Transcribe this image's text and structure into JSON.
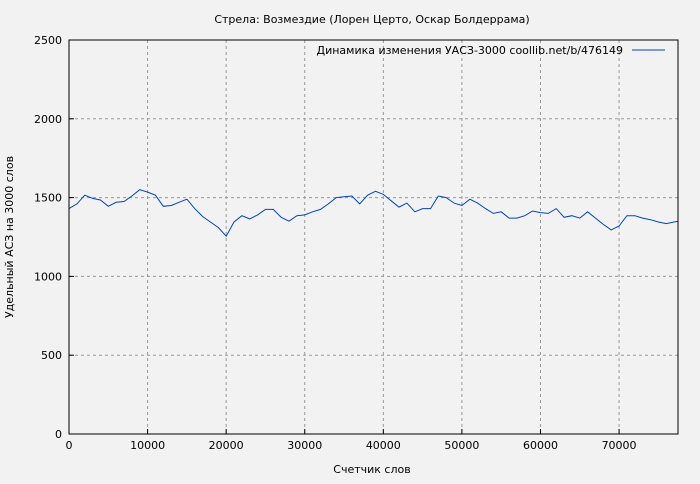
{
  "chart_data": {
    "type": "line",
    "title": "Стрела: Возмездие (Лорен Церто, Оскар Болдеррама)",
    "xlabel": "Счетчик слов",
    "ylabel": "Удельный АСЗ на 3000 слов",
    "xlim": [
      0,
      77500
    ],
    "ylim": [
      0,
      2500
    ],
    "xticks": [
      0,
      10000,
      20000,
      30000,
      40000,
      50000,
      60000,
      70000
    ],
    "yticks": [
      0,
      500,
      1000,
      1500,
      2000,
      2500
    ],
    "grid": true,
    "legend_position": "top-right",
    "line_color": "#0044bb",
    "series": [
      {
        "name": "Динамика изменения УАСЗ-3000  coollib.net/b/476149",
        "x": [
          0,
          1000,
          2000,
          3000,
          4000,
          5000,
          6000,
          7000,
          8000,
          9000,
          10000,
          11000,
          12000,
          13000,
          14000,
          15000,
          16000,
          17000,
          18000,
          19000,
          20000,
          21000,
          22000,
          23000,
          24000,
          25000,
          26000,
          27000,
          28000,
          29000,
          30000,
          31000,
          32000,
          33000,
          34000,
          35000,
          36000,
          37000,
          38000,
          39000,
          40000,
          41000,
          42000,
          43000,
          44000,
          45000,
          46000,
          47000,
          48000,
          49000,
          50000,
          51000,
          52000,
          53000,
          54000,
          55000,
          56000,
          57000,
          58000,
          59000,
          60000,
          61000,
          62000,
          63000,
          64000,
          65000,
          66000,
          67000,
          68000,
          69000,
          70000,
          71000,
          72000,
          73000,
          74000,
          75000,
          76000,
          77000,
          77500
        ],
        "y": [
          1430,
          1460,
          1515,
          1495,
          1485,
          1445,
          1470,
          1475,
          1510,
          1550,
          1535,
          1515,
          1445,
          1450,
          1470,
          1490,
          1430,
          1380,
          1345,
          1310,
          1255,
          1345,
          1385,
          1365,
          1390,
          1425,
          1425,
          1375,
          1350,
          1385,
          1390,
          1410,
          1425,
          1460,
          1500,
          1505,
          1510,
          1460,
          1515,
          1540,
          1520,
          1480,
          1440,
          1465,
          1410,
          1430,
          1430,
          1510,
          1500,
          1465,
          1450,
          1490,
          1465,
          1430,
          1400,
          1410,
          1370,
          1370,
          1385,
          1415,
          1405,
          1400,
          1430,
          1375,
          1385,
          1370,
          1410,
          1370,
          1330,
          1295,
          1320,
          1385,
          1385,
          1370,
          1360,
          1345,
          1335,
          1345,
          1350
        ]
      }
    ]
  }
}
